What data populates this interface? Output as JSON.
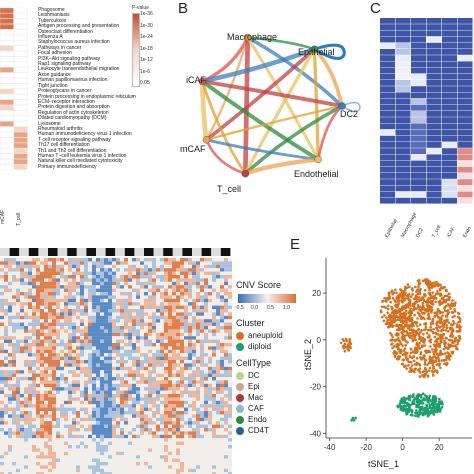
{
  "panel_labels": {
    "b": "B",
    "c": "C",
    "e": "E"
  },
  "panel_a": {
    "pathways": [
      "Phagosome",
      "Leishmaniasis",
      "Tuberculosis",
      "Antigen processing and presentation",
      "Osteoclast differentiation",
      "Influenza A",
      "Staphylococcus aureus infection",
      "Pathways in cancer",
      "Focal adhesion",
      "PI3K−Akt signaling pathway",
      "Rap1 signaling pathway",
      "Leukocyte transendothelial migration",
      "Axon guidance",
      "Human papillomavirus infection",
      "Tight junction",
      "Proteoglycans in cancer",
      "Protein processing in endoplasmic reticulum",
      "ECM−receptor interaction",
      "Protein digestion and absorption",
      "Regulation of actin cytoskeleton",
      "Dilated cardiomyopathy (DCM)",
      "Lysosome",
      "Rheumatoid arthritis",
      "Human immunodeficiency virus 1 infection",
      "T cell receptor signaling pathway",
      "Th17 cell differentiation",
      "Th1 and Th2 cell differentiation",
      "Human T−cell leukemia virus 1 infection",
      "Natural killer cell mediated cytotoxicity",
      "Primary immunodeficiency"
    ],
    "x_labels": [
      "mCAF",
      "T_cell"
    ],
    "legend_title": "P-value",
    "legend_ticks": [
      "1e-36",
      "1e-30",
      "1e-24",
      "1e-18",
      "1e-12",
      "1e-6",
      "0.05"
    ]
  },
  "panel_b": {
    "nodes": [
      "Macrophage",
      "Epithelial",
      "iCAF",
      "DC2",
      "mCAF",
      "T_cell",
      "Endothelial"
    ]
  },
  "panel_c": {
    "x_labels": [
      "Epithelial",
      "Macrophage",
      "DC2",
      "T_cell",
      "iCAF",
      "Endo"
    ]
  },
  "panel_d": {
    "legend": {
      "score_title": "CNV Score",
      "score_ticks": [
        "-0.5",
        "0.0",
        "0.5",
        "1.0"
      ],
      "cluster_title": "Cluster",
      "clusters": [
        {
          "label": "aneuploid",
          "color": "#D4701E"
        },
        {
          "label": "diploid",
          "color": "#1E9E6E"
        }
      ],
      "celltype_title": "CellType",
      "celltypes": [
        {
          "label": "DC",
          "color": "#B9D68A"
        },
        {
          "label": "Epi",
          "color": "#D7A38C"
        },
        {
          "label": "Mac",
          "color": "#B5343A"
        },
        {
          "label": "CAF",
          "color": "#8DB8D7"
        },
        {
          "label": "Endo",
          "color": "#2E8B3E"
        },
        {
          "label": "CD4T",
          "color": "#2B5C9E"
        }
      ],
      "colors": {
        "low": "#3B6FB6",
        "mid": "#F4F0EC",
        "high": "#D9703A"
      }
    }
  },
  "chart_data": {
    "type": "scatter",
    "title": "",
    "xlabel": "tSNE_1",
    "ylabel": "tSNE_2",
    "xlim": [
      -42,
      38
    ],
    "ylim": [
      -42,
      35
    ],
    "x_ticks": [
      "-40",
      "-20",
      "0",
      "20"
    ],
    "y_ticks": [
      "20",
      "0",
      "-20",
      "-40"
    ],
    "series": [
      {
        "name": "aneuploid",
        "color": "#D4701E",
        "clusters": [
          {
            "cx": 12,
            "cy": 5,
            "rx": 20,
            "ry": 21,
            "n": 900
          },
          {
            "cx": -3,
            "cy": 13,
            "rx": 9,
            "ry": 9,
            "n": 160
          },
          {
            "cx": -31,
            "cy": -2,
            "rx": 3,
            "ry": 3,
            "n": 25
          }
        ]
      },
      {
        "name": "diploid",
        "color": "#1E9E6E",
        "clusters": [
          {
            "cx": 10,
            "cy": -28,
            "rx": 13,
            "ry": 5,
            "n": 260
          },
          {
            "cx": -27,
            "cy": -34,
            "rx": 1.5,
            "ry": 1.5,
            "n": 6
          }
        ]
      }
    ]
  }
}
